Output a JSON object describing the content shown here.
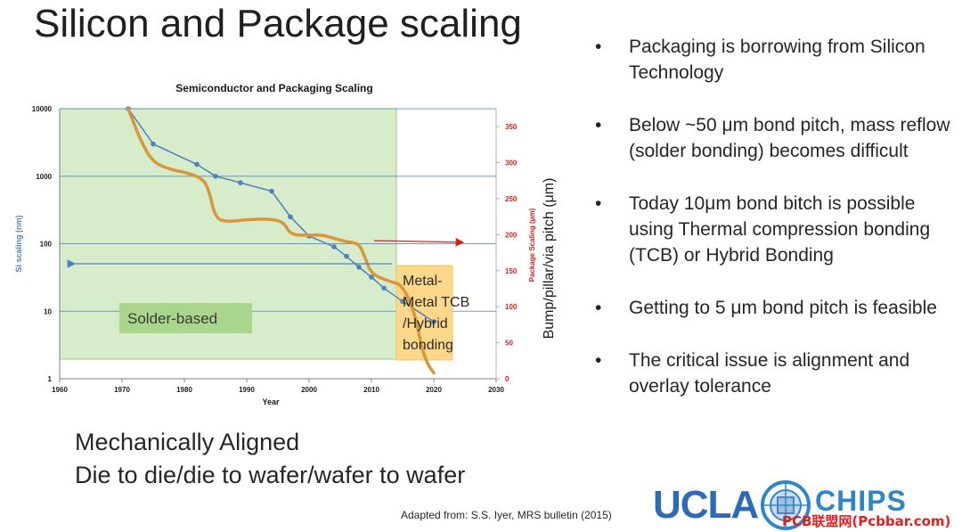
{
  "slide": {
    "title": "Silicon and Package scaling",
    "bullets": [
      "Packaging is borrowing from Silicon Technology",
      "Below ~50 μm bond pitch, mass reflow (solder bonding) becomes difficult",
      "Today 10μm bond bitch is possible using Thermal compression bonding (TCB) or Hybrid Bonding",
      "Getting to 5 μm bond pitch is feasible",
      "The critical issue is alignment and overlay tolerance"
    ],
    "mechanically_aligned": "Mechanically Aligned",
    "die_to_die": "Die to die/die to wafer/wafer to wafer",
    "adapted_from": "Adapted from: S.S. Iyer, MRS bulletin (2015)",
    "logo": {
      "ucla": "UCLA",
      "chips": "CHIPS"
    },
    "watermark": "PCB联盟网(Pcbbar.com)"
  },
  "chart_data": {
    "type": "line",
    "title": "Semiconductor and Packaging Scaling",
    "xlabel": "Year",
    "ylabel_left": "Si scaling (nm)",
    "ylabel_right_small": "Package Scaling (μm)",
    "ylabel_right_large": "Bump/pillar/via pitch (μm)",
    "xlim": [
      1960,
      2030
    ],
    "x_ticks": [
      "1960",
      "1970",
      "1980",
      "1990",
      "2000",
      "2010",
      "2020",
      "2030"
    ],
    "ylim_left": [
      1,
      10000
    ],
    "y_left_scale": "log",
    "y_left_ticks": [
      "1",
      "10",
      "100",
      "1000",
      "10000"
    ],
    "ylim_right": [
      0,
      375
    ],
    "y_right_ticks": [
      "0",
      "50",
      "100",
      "150",
      "200",
      "250",
      "300",
      "350"
    ],
    "series": [
      {
        "name": "Si scaling",
        "axis": "left",
        "color": "#4f81bd",
        "x": [
          1971,
          1975,
          1982,
          1985,
          1989,
          1994,
          1997,
          2000,
          2004,
          2006,
          2008,
          2010,
          2012,
          2015,
          2020
        ],
        "y": [
          10000,
          3000,
          1500,
          1000,
          800,
          600,
          250,
          130,
          90,
          65,
          45,
          32,
          22,
          14,
          7
        ]
      },
      {
        "name": "Package scaling",
        "axis": "right",
        "color": "#d9963a",
        "x": [
          1971,
          1973,
          1975,
          1978,
          1980,
          1983,
          1984,
          1985,
          1987,
          1990,
          1994,
          1996,
          1997,
          2000,
          2002,
          2004,
          2006,
          2008,
          2009,
          2010,
          2013,
          2015,
          2017,
          2018,
          2019,
          2020
        ],
        "y": [
          375,
          330,
          300,
          290,
          287,
          278,
          260,
          222,
          218,
          221,
          222,
          217,
          200,
          199,
          200,
          195,
          190,
          188,
          168,
          145,
          135,
          130,
          90,
          45,
          20,
          8
        ]
      }
    ],
    "regions": [
      {
        "label": "Solder-based",
        "x_range": [
          1960,
          2014
        ],
        "color": "#d6eccb"
      },
      {
        "label_lines": [
          "Metal-",
          "Metal TCB",
          "/Hybrid",
          "bonding"
        ],
        "x_range": [
          2014,
          2023
        ],
        "color": "#fdd88b"
      }
    ]
  }
}
